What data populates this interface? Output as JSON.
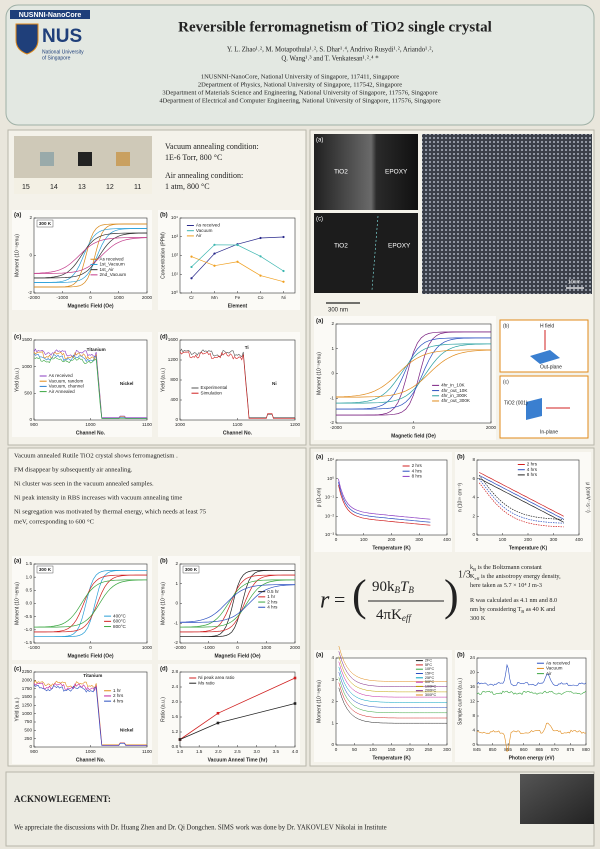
{
  "header": {
    "org_label": "NUSNNI-NanoCore",
    "logo_text": "NUS",
    "logo_subtitle": [
      "National University",
      "of Singapore"
    ],
    "title": "Reversible ferromagnetism of TiO2 single crystal",
    "authors": [
      "Y. L. Zhao¹˒², M. Motapothula¹˒², S. Dhar¹˒⁴, Andrivo Rusydi¹˒², Ariando¹˒²,",
      "Q. Wang¹˒³ and T. Venkatesan¹˒²˒⁴ *"
    ],
    "affiliations": [
      "1NUSNNI-NanoCore, National University of Singapore, 117411, Singapore",
      "2Department of Physics, National University of Singapore, 117542, Singapore",
      "3Department of Materials Science and Engineering, National University of Singapore, 117576, Singapore",
      "4Department of Electrical and Computer Engineering, National University of Singapore, 117576, Singapore"
    ]
  },
  "samples": {
    "ruler": [
      "15",
      "14",
      "13",
      "12",
      "11"
    ],
    "conditions": [
      "Vacuum annealing condition:",
      "1E-6 Torr, 800 °C",
      "Air annealing condition:",
      "1 atm, 800 °C"
    ]
  },
  "panels_top_left": [
    {
      "label": "(a)",
      "tag": "300 K",
      "y_label": "Moment (10⁻⁵emu)",
      "x_label": "Magnetic Field (Oe)",
      "xticks": [
        "-2000",
        "-1000",
        "0",
        "1000",
        "2000"
      ],
      "yticks": [
        "-2",
        "0",
        "2"
      ],
      "legend": [
        "As received",
        "1st_Vacuum",
        "1st_Air",
        "2nd_Vacuum"
      ],
      "colors": [
        "#d98a1c",
        "#2a9fd6",
        "#333333",
        "#c23b8a"
      ]
    },
    {
      "label": "(b)",
      "y_label": "Concentration (PPM)",
      "x_label": "Element",
      "xticks": [
        "Cr",
        "Mn",
        "Fe",
        "Co",
        "Ni"
      ],
      "yticks": [
        "10⁰",
        "10¹",
        "10²",
        "10³",
        "10⁴"
      ],
      "legend": [
        "As received",
        "Vacuum",
        "Air"
      ],
      "colors": [
        "#2b2b8c",
        "#3cb6b0",
        "#f0a020"
      ]
    },
    {
      "label": "(c)",
      "y_label": "Yield (a.u.)",
      "x_label": "Channel No.",
      "xticks": [
        "900",
        "1000",
        "1100"
      ],
      "yticks": [
        "0",
        "500",
        "1000",
        "1500"
      ],
      "notes": [
        "Titanium",
        "Nickel"
      ],
      "legend": [
        "As received",
        "Vacuum, random",
        "Vacuum, channel",
        "Air Annealed"
      ],
      "colors": [
        "#8a3cc2",
        "#e08a1a",
        "#2a7fd0",
        "#3aa640"
      ]
    },
    {
      "label": "(d)",
      "y_label": "Yield (a.u.)",
      "x_label": "Channel No.",
      "xticks": [
        "1000",
        "1100",
        "1200"
      ],
      "yticks": [
        "0",
        "400",
        "800",
        "1200",
        "1600"
      ],
      "notes": [
        "Ti",
        "Ni"
      ],
      "legend": [
        "Experimental",
        "Simulation"
      ],
      "colors": [
        "#555555",
        "#d02020"
      ]
    }
  ],
  "tem": {
    "labels": [
      "(a)",
      "TiO2",
      "EPOXY",
      "(c)",
      "TiO2",
      "EPOXY",
      "300 nm",
      "10nm"
    ]
  },
  "panel_top_right": {
    "label": "(a)",
    "y_label": "Moment (10⁻⁵emu)",
    "x_label": "Magnetic field (Oe)",
    "xticks": [
      "-2000",
      "0",
      "2000"
    ],
    "yticks": [
      "-2",
      "-1",
      "0",
      "1",
      "2"
    ],
    "legend": [
      "4hr_in_10K",
      "4hr_out_10K",
      "4hr_in_300K",
      "4hr_out_300K"
    ],
    "colors": [
      "#7a2080",
      "#2a4fc0",
      "#2aa0a0",
      "#e08a1a"
    ]
  },
  "schematic": [
    "(b)",
    "H field",
    "Out-plane",
    "(c)",
    "TiO2 (001)",
    "In-plane"
  ],
  "findings": [
    [
      "Vacuum annealed Rutile TiO2 crystal shows ferromagnetism ."
    ],
    [
      "FM disappear by subsequently air annealing."
    ],
    [
      "Ni cluster was seen in the vacuum annealed samples."
    ],
    [
      "Ni peak intensity in RBS increases with vacuum annealing time"
    ],
    [
      "Ni segregation was motivated by thermal energy, which needs at least 75",
      "meV, corresponding to 600 °C"
    ]
  ],
  "panels_mid_left": [
    {
      "label": "(a)",
      "tag": "300 K",
      "y_label": "Moment (10⁻⁵emu)",
      "x_label": "Magnetic Field (Oe)",
      "xticks": [
        "-1000",
        "0",
        "1000"
      ],
      "yticks": [
        "-1.5",
        "-1.0",
        "-0.5",
        "0.0",
        "0.5",
        "1.0",
        "1.5"
      ],
      "legend": [
        "400°C",
        "600°C",
        "800°C"
      ],
      "colors": [
        "#2a9fd6",
        "#d02020",
        "#3aa640"
      ]
    },
    {
      "label": "(b)",
      "tag": "300 K",
      "y_label": "Moment (10⁻⁵emu)",
      "x_label": "Magnetic Field (Oe)",
      "xticks": [
        "-2000",
        "-1000",
        "0",
        "1000",
        "2000"
      ],
      "yticks": [
        "-2",
        "-1",
        "0",
        "1",
        "2"
      ],
      "legend": [
        "0.5 hr",
        "1 hr",
        "2 hrs",
        "4 hrs"
      ],
      "colors": [
        "#222222",
        "#d02020",
        "#3aa640",
        "#2a4fc0"
      ]
    },
    {
      "label": "(c)",
      "y_label": "Yield (a.u.)",
      "x_label": "Channel No.",
      "xticks": [
        "900",
        "1000",
        "1100"
      ],
      "yticks": [
        "0",
        "250",
        "500",
        "750",
        "1000",
        "1250",
        "1500",
        "1750",
        "2000",
        "2250"
      ],
      "notes": [
        "Titanium",
        "Nickel"
      ],
      "legend": [
        "1 hr",
        "2 hrs",
        "4 hrs"
      ],
      "colors": [
        "#e08a1a",
        "#c020a0",
        "#2a4fc0"
      ]
    },
    {
      "label": "(d)",
      "y_label": "Ratio (a.u.)",
      "x_label": "Vacuum Anneal Time (hr)",
      "xticks": [
        "1.0",
        "1.5",
        "2.0",
        "2.5",
        "3.0",
        "3.5",
        "4.0"
      ],
      "yticks": [
        "0.8",
        "1.2",
        "1.6",
        "2.0",
        "2.4",
        "2.8"
      ],
      "legend": [
        "Ni peak area ratio",
        "Ms ratio"
      ],
      "colors": [
        "#d02020",
        "#222222"
      ]
    }
  ],
  "panels_mid_right": [
    {
      "label": "(a)",
      "y_label": "ρ (Ω-cm)",
      "x_label": "Temperature (K)",
      "xticks": [
        "0",
        "100",
        "200",
        "300",
        "400"
      ],
      "yticks": [
        "10⁻³",
        "10⁻²",
        "10⁻¹",
        "10⁰",
        "10¹"
      ],
      "legend": [
        "2 hrs",
        "4 hrs",
        "8 hrs"
      ],
      "colors": [
        "#d02020",
        "#2a4fc0",
        "#8a3cc2"
      ]
    },
    {
      "label": "(b)",
      "y_label": "n (10¹⁹ cm⁻³)",
      "y2_label": "μ (cm²V⁻¹s⁻¹)",
      "x_label": "Temperature (K)",
      "xticks": [
        "0",
        "100",
        "200",
        "300",
        "400"
      ],
      "yticks": [
        "0",
        "2",
        "4",
        "6",
        "8"
      ],
      "legend": [
        "2 hrs",
        "4 hrs",
        "8 hrs"
      ],
      "colors": [
        "#d02020",
        "#2a4fc0",
        "#222222"
      ]
    }
  ],
  "equation": {
    "lhs": "r",
    "eq": "=",
    "num": [
      "90k",
      "B",
      "T",
      "B"
    ],
    "den": [
      "4πK",
      "eff"
    ],
    "exponent": "1/3"
  },
  "equation_notes": [
    [
      "k",
      "B",
      " is the Boltzmann constant"
    ],
    [
      "K",
      "eff",
      " is the anisotropy energy density,"
    ],
    [
      "here taken as 5.7 × 10⁴ J m-3"
    ],
    [
      "R was calculated as 4.1 nm and 8.0"
    ],
    [
      "nm by considering T",
      "B",
      " as 40 K and"
    ],
    [
      "300 K"
    ]
  ],
  "panels_bottom_right": [
    {
      "label": "(a)",
      "y_label": "Moment (10⁻⁵emu)",
      "x_label": "Temperature (K)",
      "xticks": [
        "0",
        "50",
        "100",
        "150",
        "200",
        "250",
        "300"
      ],
      "yticks": [
        "0",
        "1",
        "2",
        "3",
        "4"
      ],
      "legend": [
        "2FC",
        "5FC",
        "10FC",
        "15FC",
        "25FC",
        "50FC",
        "100FC",
        "200FC",
        "300FC"
      ],
      "colors": [
        "#222222",
        "#d02020",
        "#3aa640",
        "#2a4fc0",
        "#00a0c0",
        "#c020a0",
        "#c0a000",
        "#7a2080",
        "#e08a1a"
      ]
    },
    {
      "label": "(b)",
      "y_label": "Sample current (a.u.)",
      "x_label": "Photon energy (eV)",
      "xticks": [
        "845",
        "850",
        "855",
        "860",
        "865",
        "870",
        "875",
        "880"
      ],
      "yticks": [
        "0",
        "4",
        "8",
        "12",
        "16",
        "20",
        "24"
      ],
      "legend": [
        "As received",
        "Vacuum",
        "Air"
      ],
      "colors": [
        "#2a4fc0",
        "#e08a1a",
        "#3aa640"
      ]
    }
  ],
  "acknowledgement": {
    "heading": "ACKNOWLEGEMENT:",
    "text": "We appreciate the discussions with Dr. Huang Zhen and Dr. Qi Dongchen. SIMS work was done by Dr. YAKOVLEV Nikolai in Institute"
  }
}
